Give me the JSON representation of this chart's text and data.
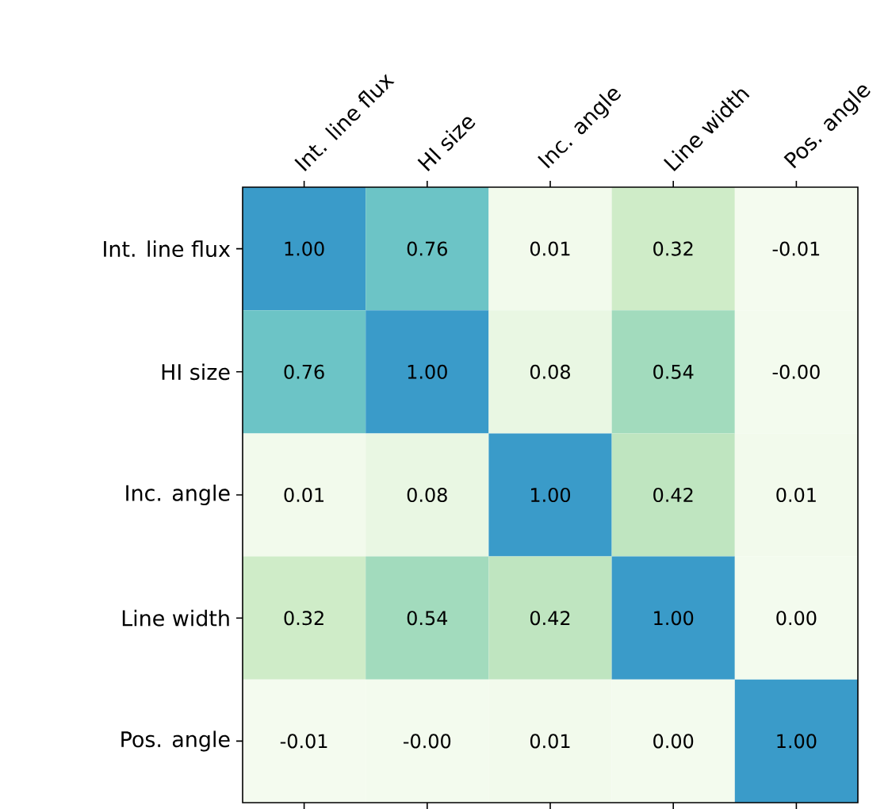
{
  "chart_data": {
    "type": "heatmap",
    "categories": [
      "Int. line flux",
      "HI size",
      "Inc. angle",
      "Line width",
      "Pos. angle"
    ],
    "y_categories": [
      "Int. line flux",
      "HI size",
      "Inc. angle",
      "Line width",
      "Pos. angle"
    ],
    "cells": [
      [
        1.0,
        0.76,
        0.01,
        0.32,
        -0.01
      ],
      [
        0.76,
        1.0,
        0.08,
        0.54,
        0.0
      ],
      [
        0.01,
        0.08,
        1.0,
        0.42,
        0.01
      ],
      [
        0.32,
        0.54,
        0.42,
        1.0,
        0.0
      ],
      [
        -0.01,
        0.0,
        0.01,
        0.0,
        1.0
      ]
    ],
    "cell_labels": [
      [
        "1.00",
        "0.76",
        "0.01",
        "0.32",
        "-0.01"
      ],
      [
        "0.76",
        "1.00",
        "0.08",
        "0.54",
        "-0.00"
      ],
      [
        "0.01",
        "0.08",
        "1.00",
        "0.42",
        "0.01"
      ],
      [
        "0.32",
        "0.54",
        "0.42",
        "1.00",
        "0.00"
      ],
      [
        "-0.01",
        "-0.00",
        "0.01",
        "0.00",
        "1.00"
      ]
    ]
  }
}
